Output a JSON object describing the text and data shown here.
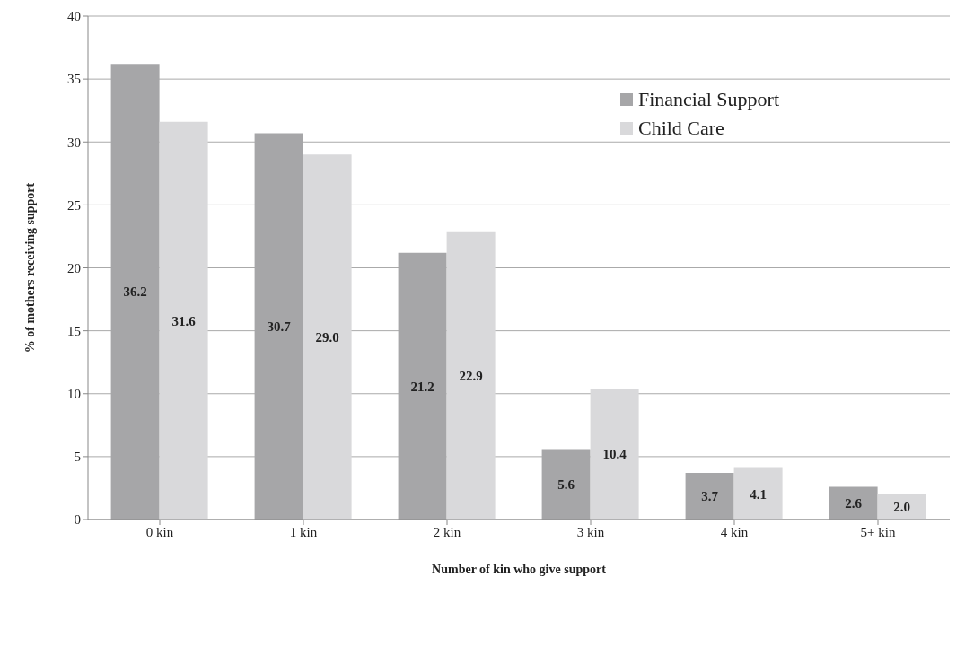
{
  "chart_data": {
    "type": "bar",
    "xlabel": "Number of kin who give support",
    "ylabel": "% of mothers receiving support",
    "categories": [
      "0  kin",
      "1 kin",
      "2 kin",
      "3 kin",
      "4 kin",
      "5+ kin"
    ],
    "series": [
      {
        "name": "Financial Support",
        "color": "#a6a6a8",
        "values": [
          36.2,
          30.7,
          21.2,
          5.6,
          3.7,
          2.6
        ],
        "value_labels": [
          "36.2",
          "30.7",
          "21.2",
          "5.6",
          "3.7",
          "2.6"
        ]
      },
      {
        "name": "Child Care",
        "color": "#d9d9db",
        "values": [
          31.6,
          29.0,
          22.9,
          10.4,
          4.1,
          2.0
        ],
        "value_labels": [
          "31.6",
          "29.0",
          "22.9",
          "10.4",
          "4.1",
          "2.0"
        ]
      }
    ],
    "ylim": [
      0,
      40
    ],
    "yticks": [
      0,
      5,
      10,
      15,
      20,
      25,
      30,
      35,
      40
    ],
    "grid": "y",
    "legend": "top right"
  }
}
